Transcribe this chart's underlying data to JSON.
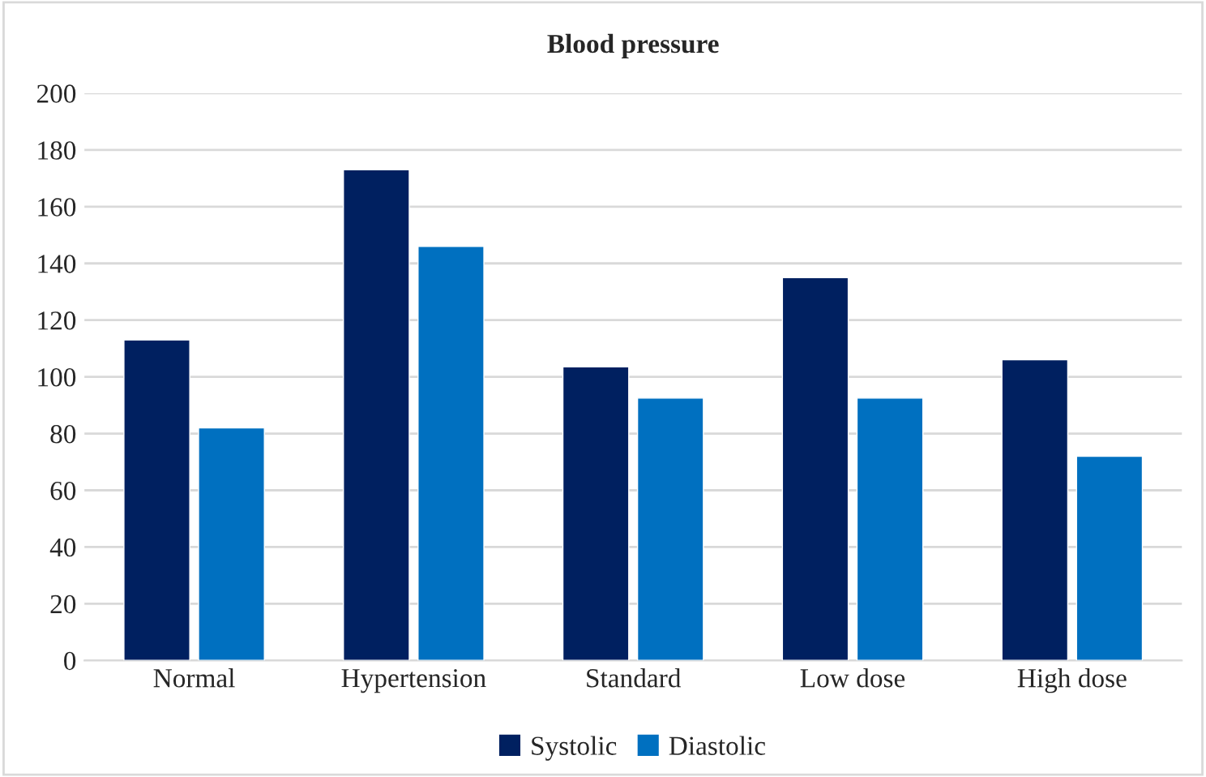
{
  "chart_data": {
    "type": "bar",
    "title": "Blood pressure",
    "categories": [
      "Normal",
      "Hypertension",
      "Standard",
      "Low dose",
      "High dose"
    ],
    "series": [
      {
        "name": "Systolic",
        "color": "#002060",
        "values": [
          113,
          173,
          103.5,
          135,
          106
        ]
      },
      {
        "name": "Diastolic",
        "color": "#0070c0",
        "values": [
          82,
          146,
          92.5,
          92.5,
          72
        ]
      }
    ],
    "ylim": [
      0,
      200
    ],
    "yticks": [
      0,
      20,
      40,
      60,
      80,
      100,
      120,
      140,
      160,
      180,
      200
    ],
    "grid": "y",
    "legend": "bottom"
  }
}
